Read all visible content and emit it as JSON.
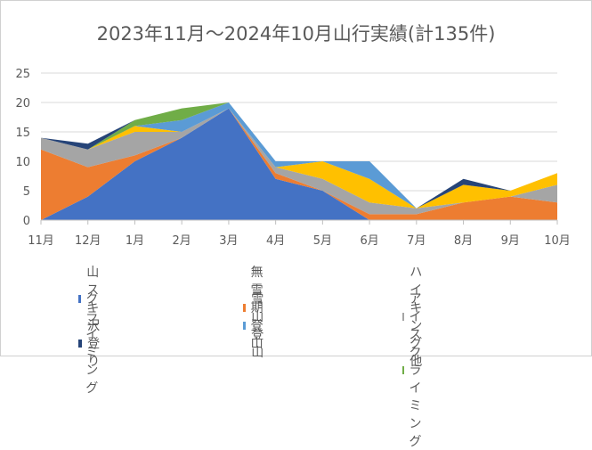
{
  "chart_data": {
    "type": "area",
    "stacked": true,
    "title": "2023年11月～2024年10月山行実績(計135件)",
    "categories": [
      "11月",
      "12月",
      "1月",
      "2月",
      "3月",
      "4月",
      "5月",
      "6月",
      "7月",
      "8月",
      "9月",
      "10月"
    ],
    "ylim": [
      0,
      25
    ],
    "yticks": [
      0,
      5,
      10,
      15,
      20,
      25
    ],
    "grid": true,
    "legend_position": "bottom",
    "series": [
      {
        "name": "山スキー",
        "color": "#4472c4",
        "values": [
          0,
          4,
          10,
          14,
          19,
          7,
          5,
          0,
          0,
          0,
          0,
          0
        ]
      },
      {
        "name": "無雪期登山",
        "color": "#ed7d31",
        "values": [
          12,
          5,
          1,
          0,
          0,
          1,
          0,
          1,
          1,
          3,
          4,
          3
        ]
      },
      {
        "name": "ハイキング他",
        "color": "#a5a5a5",
        "values": [
          2,
          3,
          4,
          1,
          0,
          1,
          2,
          2,
          1,
          0,
          0,
          3
        ]
      },
      {
        "name": "クライミング",
        "color": "#ffc000",
        "values": [
          0,
          0,
          1,
          0,
          0,
          0,
          3,
          4,
          0,
          3,
          1,
          2
        ]
      },
      {
        "name": "雪山登山",
        "color": "#5b9bd5",
        "values": [
          0,
          0,
          0,
          2,
          1,
          1,
          0,
          3,
          0,
          0,
          0,
          0
        ]
      },
      {
        "name": "アイスクライミング",
        "color": "#70ad47",
        "values": [
          0,
          0,
          1,
          2,
          0,
          0,
          0,
          0,
          0,
          0,
          0,
          0
        ]
      },
      {
        "name": "沢登り",
        "color": "#264478",
        "values": [
          0,
          1,
          0,
          0,
          0,
          0,
          0,
          0,
          0,
          1,
          0,
          0
        ]
      }
    ]
  }
}
